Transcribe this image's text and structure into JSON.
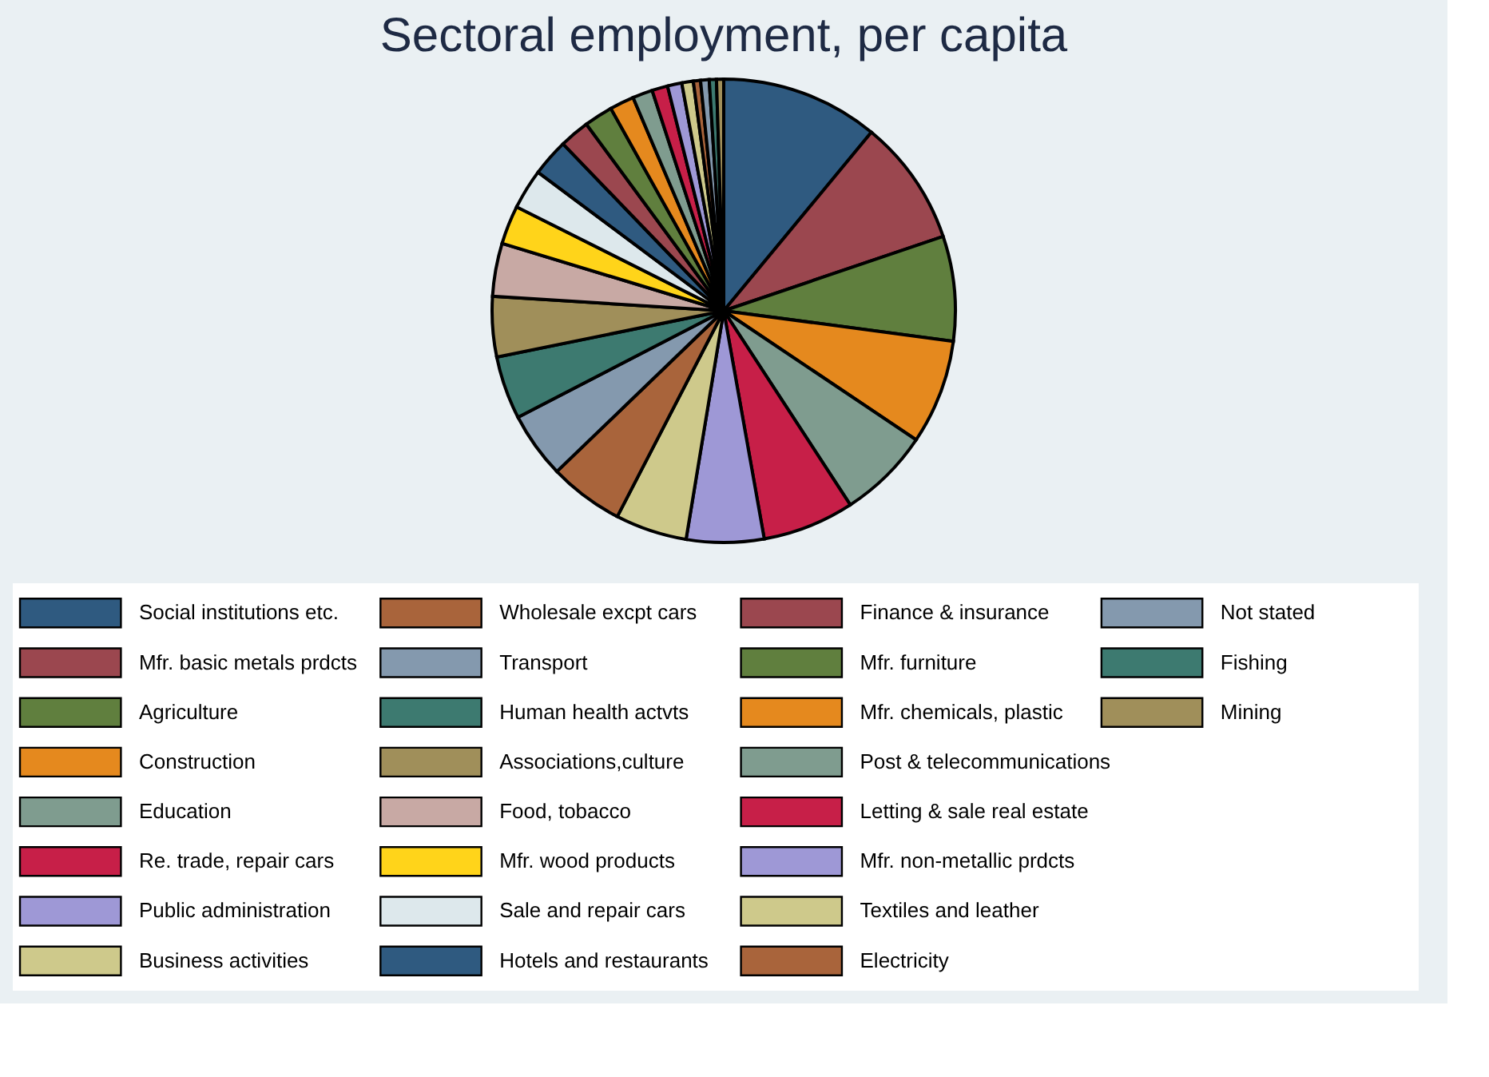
{
  "chart_data": {
    "type": "pie",
    "title": "Sectoral employment, per capita",
    "categories": [
      "Social institutions etc.",
      "Mfr. basic metals prdcts",
      "Agriculture",
      "Construction",
      "Education",
      "Re. trade, repair cars",
      "Public administration",
      "Business activities",
      "Wholesale excpt cars",
      "Transport",
      "Human health actvts",
      "Associations,culture",
      "Food, tobacco",
      "Mfr. wood products",
      "Sale and repair cars",
      "Hotels and restaurants",
      "Finance & insurance",
      "Mfr. furniture",
      "Mfr. chemicals, plastic",
      "Post & telecommunications",
      "Letting & sale real estate",
      "Mfr. non-metallic prdcts",
      "Textiles and leather",
      "Electricity",
      "Not stated",
      "Fishing",
      "Mining"
    ],
    "values": [
      11.0,
      8.8,
      7.3,
      7.3,
      6.4,
      6.4,
      5.4,
      5.0,
      5.2,
      4.6,
      4.4,
      4.2,
      3.7,
      2.7,
      2.8,
      2.6,
      2.1,
      2.0,
      1.7,
      1.4,
      1.1,
      1.0,
      0.8,
      0.5,
      0.6,
      0.5,
      0.5
    ],
    "colors": [
      "#2f5a80",
      "#9b474f",
      "#607f3e",
      "#e5891e",
      "#7f9c8f",
      "#c71f48",
      "#9e98d6",
      "#cec98b",
      "#a9643b",
      "#8499ae",
      "#3d7a70",
      "#a08f5a",
      "#c8a9a4",
      "#ffd41a",
      "#dde8ec",
      "#2f5a80",
      "#9b474f",
      "#607f3e",
      "#e5891e",
      "#7f9c8f",
      "#c71f48",
      "#9e98d6",
      "#cec98b",
      "#a9643b",
      "#8499ae",
      "#3d7a70",
      "#a08f5a"
    ],
    "legend": "bottom"
  }
}
